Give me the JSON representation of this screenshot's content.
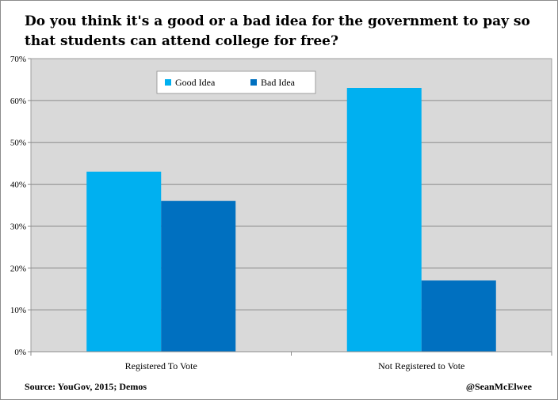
{
  "chart_data": {
    "type": "bar",
    "title": "Do you think it's a good or a bad idea for the government to pay so that students can attend college for free?",
    "categories": [
      "Registered To Vote",
      "Not Registered to Vote"
    ],
    "series": [
      {
        "name": "Good Idea",
        "color": "#00b0f0",
        "values": [
          43,
          63
        ]
      },
      {
        "name": "Bad Idea",
        "color": "#0070c0",
        "values": [
          36,
          17
        ]
      }
    ],
    "ylim": [
      0,
      70
    ],
    "yticks": [
      0,
      10,
      20,
      30,
      40,
      50,
      60,
      70
    ],
    "ytick_labels": [
      "0%",
      "10%",
      "20%",
      "30%",
      "40%",
      "50%",
      "60%",
      "70%"
    ],
    "grid": true,
    "legend_position": "top-left",
    "xlabel": "",
    "ylabel": "",
    "plot_background": "#d9d9d9"
  },
  "footer": {
    "source": "Source: YouGov, 2015; Demos",
    "credit": "@SeanMcElwee"
  }
}
